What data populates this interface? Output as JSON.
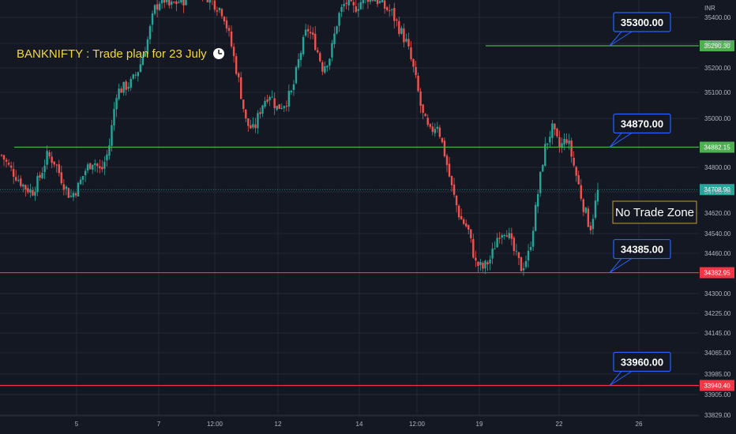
{
  "chart_data": {
    "type": "candlestick",
    "title": "BANKNIFTY : Trade plan for 23 July",
    "currency_label": "INR",
    "ylim": [
      33829,
      35450
    ],
    "y_ticks": [
      35400,
      35300,
      35200,
      35100,
      35000,
      34800,
      34700,
      34620,
      34540,
      34460,
      34300,
      34225,
      34145,
      34065,
      33985,
      33905,
      33829
    ],
    "y_tick_labels": [
      "35400.00",
      "35300.00",
      "35200.00",
      "35100.00",
      "35000.00",
      "34800.00",
      "34700.00",
      "34620.00",
      "34540.00",
      "34460.00",
      "34300.00",
      "34225.00",
      "34145.00",
      "34065.00",
      "33985.00",
      "33905.00",
      "33829.00"
    ],
    "x_ticks": [
      "5",
      "7",
      "12:00",
      "12",
      "14",
      "12:00",
      "19",
      "22",
      "26"
    ],
    "horizontal_levels": [
      {
        "price": 35290.3,
        "label": "35290.30",
        "color": "#4caf50",
        "callout": "35300.00"
      },
      {
        "price": 34882.15,
        "label": "34882.15",
        "color": "#4caf50",
        "callout": "34870.00"
      },
      {
        "price": 34382.95,
        "label": "34382.95",
        "color": "#f23645",
        "callout": "34385.00"
      },
      {
        "price": 33940.4,
        "label": "33940.40",
        "color": "#f23645",
        "callout": "33960.00"
      }
    ],
    "last_price": {
      "price": 34708.9,
      "label": "34708.90",
      "color": "#26a69a"
    },
    "annotation": "No Trade Zone",
    "colors": {
      "up": "#26a69a",
      "down": "#ef5350",
      "background": "#141823",
      "grid": "#232835",
      "callout_border": "#2962ff",
      "zone_border": "#c49a2c"
    },
    "price_path": [
      34850,
      34800,
      34760,
      34720,
      34700,
      34760,
      34850,
      34820,
      34740,
      34680,
      34720,
      34790,
      34830,
      34780,
      34870,
      35100,
      35120,
      35140,
      35200,
      35300,
      35430,
      35480,
      35440,
      35460,
      35470,
      35500,
      35520,
      35480,
      35450,
      35420,
      35300,
      35150,
      34980,
      34950,
      35050,
      35100,
      35040,
      35060,
      35100,
      35250,
      35360,
      35300,
      35200,
      35250,
      35400,
      35460,
      35430,
      35460,
      35480,
      35470,
      35440,
      35420,
      35360,
      35300,
      35180,
      35020,
      34940,
      34980,
      34850,
      34700,
      34600,
      34560,
      34420,
      34400,
      34440,
      34540,
      34560,
      34470,
      34400,
      34460,
      34660,
      34870,
      34960,
      34880,
      34920,
      34790,
      34660,
      34560,
      34700
    ]
  }
}
